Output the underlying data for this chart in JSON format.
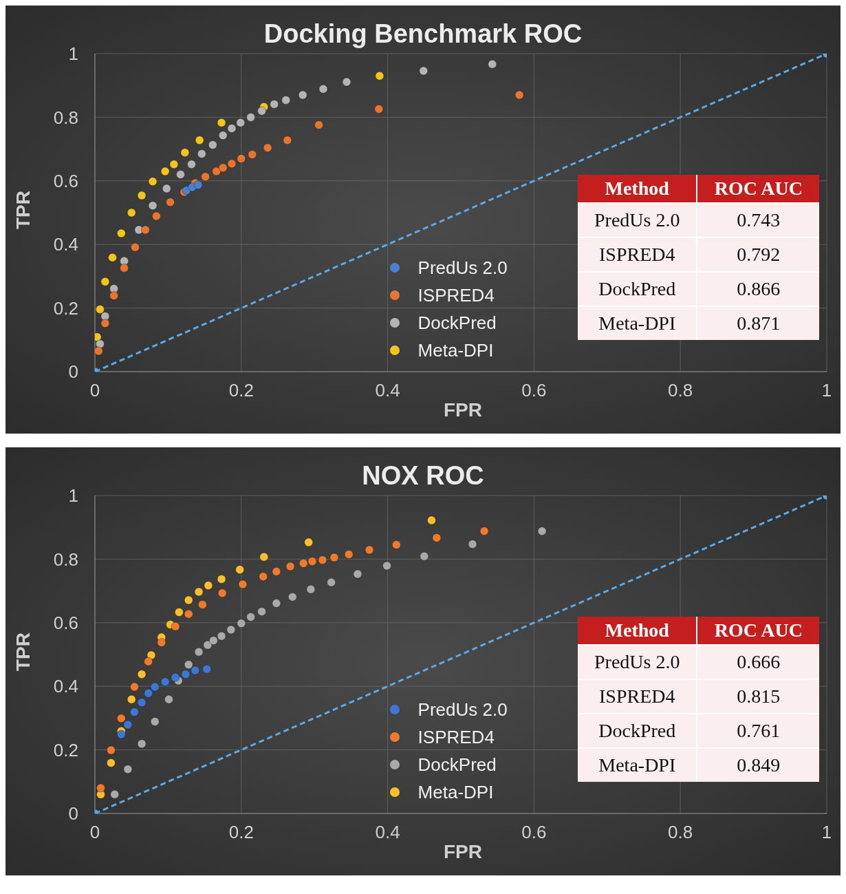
{
  "chart_data": [
    {
      "type": "scatter",
      "title": "Docking Benchmark ROC",
      "xlabel": "FPR",
      "ylabel": "TPR",
      "xlim": [
        0,
        1
      ],
      "ylim": [
        0,
        1
      ],
      "xticks": [
        0,
        0.2,
        0.4,
        0.6,
        0.8,
        1
      ],
      "yticks": [
        0,
        0.2,
        0.4,
        0.6,
        0.8,
        1
      ],
      "grid": true,
      "legend": "bottom",
      "marker": "circle",
      "series": [
        {
          "name": "PredUs 2.0",
          "color": "#4a7fd4",
          "x": [
            0.125,
            0.133,
            0.141
          ],
          "values": [
            0.57,
            0.58,
            0.587
          ]
        },
        {
          "name": "ISPRED4",
          "color": "#e8742e",
          "x": [
            0.005,
            0.014,
            0.026,
            0.04,
            0.055,
            0.069,
            0.084,
            0.103,
            0.122,
            0.137,
            0.151,
            0.166,
            0.175,
            0.187,
            0.2,
            0.215,
            0.236,
            0.263,
            0.306,
            0.388,
            0.58
          ],
          "values": [
            0.065,
            0.152,
            0.239,
            0.326,
            0.391,
            0.446,
            0.489,
            0.533,
            0.565,
            0.593,
            0.613,
            0.63,
            0.641,
            0.654,
            0.67,
            0.683,
            0.704,
            0.728,
            0.776,
            0.826,
            0.87
          ]
        },
        {
          "name": "DockPred",
          "color": "#b4b4b4",
          "x": [
            0.007,
            0.014,
            0.026,
            0.04,
            0.06,
            0.079,
            0.098,
            0.117,
            0.132,
            0.146,
            0.161,
            0.175,
            0.187,
            0.199,
            0.213,
            0.228,
            0.245,
            0.261,
            0.284,
            0.312,
            0.344,
            0.449,
            0.543
          ],
          "values": [
            0.087,
            0.174,
            0.261,
            0.348,
            0.446,
            0.522,
            0.576,
            0.62,
            0.652,
            0.685,
            0.713,
            0.743,
            0.765,
            0.783,
            0.8,
            0.82,
            0.841,
            0.854,
            0.87,
            0.889,
            0.911,
            0.946,
            0.967
          ]
        },
        {
          "name": "Meta-DPI",
          "color": "#f2c41c",
          "x": [
            0.003,
            0.007,
            0.014,
            0.024,
            0.036,
            0.05,
            0.064,
            0.079,
            0.096,
            0.108,
            0.123,
            0.143,
            0.173,
            0.231,
            0.389
          ],
          "values": [
            0.109,
            0.196,
            0.283,
            0.359,
            0.435,
            0.5,
            0.554,
            0.598,
            0.63,
            0.652,
            0.689,
            0.728,
            0.783,
            0.833,
            0.93
          ]
        },
        {
          "type": "line",
          "color": "#5aa9e6",
          "line_style": "dashed",
          "x": [
            0,
            1
          ],
          "values": [
            0,
            1
          ]
        }
      ],
      "annotations": [
        "Method",
        "ROC AUC",
        "PredUs 2.0",
        "0.743",
        "ISPRED4",
        "0.792",
        "DockPred",
        "0.866",
        "Meta-DPI",
        "0.871"
      ]
    },
    {
      "type": "scatter",
      "title": "NOX ROC",
      "xlabel": "FPR",
      "ylabel": "TPR",
      "xlim": [
        0,
        1
      ],
      "ylim": [
        0,
        1
      ],
      "xticks": [
        0,
        0.2,
        0.4,
        0.6,
        0.8,
        1
      ],
      "yticks": [
        0,
        0.2,
        0.4,
        0.6,
        0.8,
        1
      ],
      "grid": true,
      "legend": "bottom",
      "marker": "circle",
      "series": [
        {
          "name": "PredUs 2.0",
          "color": "#3f76d6",
          "x": [
            0.036,
            0.045,
            0.054,
            0.064,
            0.073,
            0.082,
            0.096,
            0.11,
            0.124,
            0.137,
            0.153
          ],
          "values": [
            0.249,
            0.279,
            0.319,
            0.349,
            0.378,
            0.398,
            0.414,
            0.428,
            0.438,
            0.45,
            0.454
          ]
        },
        {
          "name": "ISPRED4",
          "color": "#f07a2c",
          "x": [
            0.008,
            0.022,
            0.036,
            0.054,
            0.073,
            0.091,
            0.11,
            0.128,
            0.147,
            0.174,
            0.202,
            0.23,
            0.248,
            0.267,
            0.285,
            0.297,
            0.311,
            0.327,
            0.347,
            0.375,
            0.412,
            0.467,
            0.532
          ],
          "values": [
            0.08,
            0.199,
            0.299,
            0.398,
            0.478,
            0.538,
            0.588,
            0.627,
            0.657,
            0.693,
            0.721,
            0.745,
            0.761,
            0.777,
            0.787,
            0.793,
            0.797,
            0.805,
            0.815,
            0.829,
            0.845,
            0.867,
            0.888
          ]
        },
        {
          "name": "DockPred",
          "color": "#a9a9a9",
          "x": [
            0.027,
            0.045,
            0.064,
            0.082,
            0.101,
            0.114,
            0.128,
            0.142,
            0.154,
            0.162,
            0.173,
            0.186,
            0.2,
            0.213,
            0.228,
            0.248,
            0.27,
            0.295,
            0.323,
            0.359,
            0.399,
            0.45,
            0.516,
            0.611
          ],
          "values": [
            0.06,
            0.139,
            0.219,
            0.289,
            0.359,
            0.418,
            0.468,
            0.508,
            0.53,
            0.544,
            0.558,
            0.578,
            0.598,
            0.618,
            0.635,
            0.661,
            0.681,
            0.705,
            0.727,
            0.753,
            0.779,
            0.809,
            0.847,
            0.888
          ]
        },
        {
          "name": "Meta-DPI",
          "color": "#fcbf2a",
          "x": [
            0.008,
            0.022,
            0.036,
            0.05,
            0.064,
            0.077,
            0.091,
            0.103,
            0.115,
            0.128,
            0.142,
            0.155,
            0.173,
            0.198,
            0.231,
            0.292,
            0.46
          ],
          "values": [
            0.06,
            0.159,
            0.259,
            0.359,
            0.438,
            0.498,
            0.554,
            0.594,
            0.633,
            0.671,
            0.697,
            0.717,
            0.737,
            0.767,
            0.807,
            0.853,
            0.922
          ]
        },
        {
          "type": "line",
          "color": "#5aa9e6",
          "line_style": "dashed",
          "x": [
            0,
            1
          ],
          "values": [
            0,
            1
          ]
        }
      ],
      "annotations": [
        "Method",
        "ROC AUC",
        "PredUs 2.0",
        "0.666",
        "ISPRED4",
        "0.815",
        "DockPred",
        "0.761",
        "Meta-DPI",
        "0.849"
      ]
    }
  ]
}
